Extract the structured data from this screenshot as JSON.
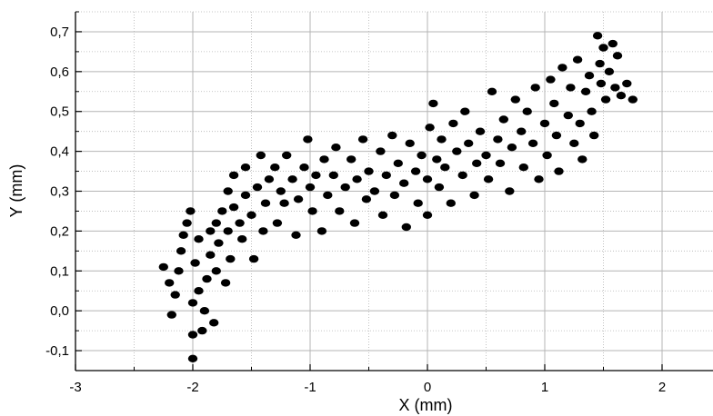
{
  "chart_data": {
    "type": "scatter",
    "title": "",
    "xlabel": "X (mm)",
    "ylabel": "Y (mm)",
    "xlim": [
      -3,
      2.5
    ],
    "ylim": [
      -0.15,
      0.75
    ],
    "x_ticks": [
      -3,
      -2,
      -1,
      0,
      1,
      2
    ],
    "x_tick_labels": [
      "-3",
      "-2",
      "-1",
      "0",
      "1",
      "2"
    ],
    "y_ticks": [
      -0.1,
      0.0,
      0.1,
      0.2,
      0.3,
      0.4,
      0.5,
      0.6,
      0.7
    ],
    "y_tick_labels": [
      "-0,1",
      "0,0",
      "0,1",
      "0,2",
      "0,3",
      "0,4",
      "0,5",
      "0,6",
      "0,7"
    ],
    "grid": true,
    "minor_grid": true,
    "marker_color": "#000000",
    "grid_color": "#b4b4b4",
    "series": [
      {
        "points": [
          [
            -2.25,
            0.11
          ],
          [
            -2.2,
            0.07
          ],
          [
            -2.18,
            -0.01
          ],
          [
            -2.15,
            0.04
          ],
          [
            -2.12,
            0.1
          ],
          [
            -2.1,
            0.15
          ],
          [
            -2.08,
            0.19
          ],
          [
            -2.05,
            0.22
          ],
          [
            -2.02,
            0.25
          ],
          [
            -2.0,
            0.02
          ],
          [
            -2.0,
            -0.06
          ],
          [
            -2.0,
            -0.12
          ],
          [
            -1.98,
            0.12
          ],
          [
            -1.95,
            0.18
          ],
          [
            -1.95,
            0.05
          ],
          [
            -1.92,
            -0.05
          ],
          [
            -1.9,
            0.0
          ],
          [
            -1.88,
            0.08
          ],
          [
            -1.85,
            0.14
          ],
          [
            -1.85,
            0.2
          ],
          [
            -1.82,
            -0.03
          ],
          [
            -1.8,
            0.22
          ],
          [
            -1.8,
            0.1
          ],
          [
            -1.78,
            0.17
          ],
          [
            -1.75,
            0.25
          ],
          [
            -1.72,
            0.07
          ],
          [
            -1.7,
            0.2
          ],
          [
            -1.7,
            0.3
          ],
          [
            -1.68,
            0.13
          ],
          [
            -1.65,
            0.26
          ],
          [
            -1.65,
            0.34
          ],
          [
            -1.6,
            0.22
          ],
          [
            -1.58,
            0.18
          ],
          [
            -1.55,
            0.29
          ],
          [
            -1.55,
            0.36
          ],
          [
            -1.5,
            0.24
          ],
          [
            -1.48,
            0.13
          ],
          [
            -1.45,
            0.31
          ],
          [
            -1.42,
            0.39
          ],
          [
            -1.4,
            0.2
          ],
          [
            -1.38,
            0.27
          ],
          [
            -1.35,
            0.33
          ],
          [
            -1.3,
            0.36
          ],
          [
            -1.28,
            0.22
          ],
          [
            -1.25,
            0.3
          ],
          [
            -1.22,
            0.27
          ],
          [
            -1.2,
            0.39
          ],
          [
            -1.15,
            0.33
          ],
          [
            -1.12,
            0.19
          ],
          [
            -1.1,
            0.28
          ],
          [
            -1.05,
            0.36
          ],
          [
            -1.02,
            0.43
          ],
          [
            -1.0,
            0.31
          ],
          [
            -0.98,
            0.25
          ],
          [
            -0.95,
            0.34
          ],
          [
            -0.9,
            0.2
          ],
          [
            -0.88,
            0.38
          ],
          [
            -0.85,
            0.29
          ],
          [
            -0.8,
            0.34
          ],
          [
            -0.78,
            0.41
          ],
          [
            -0.75,
            0.25
          ],
          [
            -0.7,
            0.31
          ],
          [
            -0.65,
            0.38
          ],
          [
            -0.62,
            0.22
          ],
          [
            -0.6,
            0.33
          ],
          [
            -0.55,
            0.43
          ],
          [
            -0.52,
            0.28
          ],
          [
            -0.5,
            0.35
          ],
          [
            -0.45,
            0.3
          ],
          [
            -0.4,
            0.4
          ],
          [
            -0.38,
            0.24
          ],
          [
            -0.35,
            0.34
          ],
          [
            -0.3,
            0.44
          ],
          [
            -0.28,
            0.29
          ],
          [
            -0.25,
            0.37
          ],
          [
            -0.2,
            0.32
          ],
          [
            -0.18,
            0.21
          ],
          [
            -0.15,
            0.42
          ],
          [
            -0.1,
            0.35
          ],
          [
            -0.08,
            0.27
          ],
          [
            -0.05,
            0.39
          ],
          [
            0.0,
            0.33
          ],
          [
            0.0,
            0.24
          ],
          [
            0.02,
            0.46
          ],
          [
            0.05,
            0.52
          ],
          [
            0.08,
            0.38
          ],
          [
            0.1,
            0.31
          ],
          [
            0.12,
            0.43
          ],
          [
            0.15,
            0.36
          ],
          [
            0.2,
            0.27
          ],
          [
            0.22,
            0.47
          ],
          [
            0.25,
            0.4
          ],
          [
            0.3,
            0.34
          ],
          [
            0.32,
            0.5
          ],
          [
            0.35,
            0.42
          ],
          [
            0.4,
            0.29
          ],
          [
            0.42,
            0.37
          ],
          [
            0.45,
            0.45
          ],
          [
            0.5,
            0.39
          ],
          [
            0.52,
            0.33
          ],
          [
            0.55,
            0.55
          ],
          [
            0.6,
            0.43
          ],
          [
            0.62,
            0.37
          ],
          [
            0.65,
            0.48
          ],
          [
            0.7,
            0.3
          ],
          [
            0.72,
            0.41
          ],
          [
            0.75,
            0.53
          ],
          [
            0.8,
            0.45
          ],
          [
            0.82,
            0.36
          ],
          [
            0.85,
            0.5
          ],
          [
            0.9,
            0.42
          ],
          [
            0.92,
            0.56
          ],
          [
            0.95,
            0.33
          ],
          [
            1.0,
            0.47
          ],
          [
            1.02,
            0.39
          ],
          [
            1.05,
            0.58
          ],
          [
            1.08,
            0.52
          ],
          [
            1.1,
            0.44
          ],
          [
            1.12,
            0.35
          ],
          [
            1.15,
            0.61
          ],
          [
            1.2,
            0.49
          ],
          [
            1.22,
            0.56
          ],
          [
            1.25,
            0.42
          ],
          [
            1.28,
            0.63
          ],
          [
            1.3,
            0.47
          ],
          [
            1.32,
            0.38
          ],
          [
            1.35,
            0.55
          ],
          [
            1.38,
            0.59
          ],
          [
            1.4,
            0.5
          ],
          [
            1.42,
            0.44
          ],
          [
            1.45,
            0.69
          ],
          [
            1.47,
            0.62
          ],
          [
            1.48,
            0.57
          ],
          [
            1.5,
            0.66
          ],
          [
            1.52,
            0.53
          ],
          [
            1.55,
            0.6
          ],
          [
            1.58,
            0.67
          ],
          [
            1.6,
            0.56
          ],
          [
            1.62,
            0.64
          ],
          [
            1.65,
            0.54
          ],
          [
            1.7,
            0.57
          ],
          [
            1.75,
            0.53
          ]
        ]
      }
    ]
  }
}
